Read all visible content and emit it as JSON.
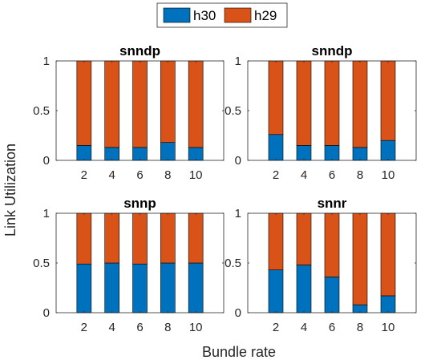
{
  "figure": {
    "xlabel": "Bundle rate",
    "ylabel": "Link Utilization"
  },
  "legend": {
    "placement": "top-center",
    "entries": [
      {
        "label": "h30",
        "color": "#0072BD"
      },
      {
        "label": "h29",
        "color": "#D95319"
      }
    ]
  },
  "chart_data": [
    {
      "type": "bar",
      "stacked": true,
      "title": "snndp",
      "categories": [
        "2",
        "4",
        "6",
        "8",
        "10"
      ],
      "ylim": [
        0,
        1
      ],
      "yticks": [
        "0",
        "0.5",
        "1"
      ],
      "series": [
        {
          "name": "h30",
          "values": [
            0.15,
            0.13,
            0.13,
            0.18,
            0.13
          ]
        },
        {
          "name": "h29",
          "values": [
            0.85,
            0.87,
            0.87,
            0.82,
            0.87
          ]
        }
      ]
    },
    {
      "type": "bar",
      "stacked": true,
      "title": "snndp",
      "categories": [
        "2",
        "4",
        "6",
        "8",
        "10"
      ],
      "ylim": [
        0,
        1
      ],
      "yticks": [
        "0",
        "0.5",
        "1"
      ],
      "series": [
        {
          "name": "h30",
          "values": [
            0.26,
            0.15,
            0.15,
            0.13,
            0.2
          ]
        },
        {
          "name": "h29",
          "values": [
            0.74,
            0.85,
            0.85,
            0.87,
            0.8
          ]
        }
      ]
    },
    {
      "type": "bar",
      "stacked": true,
      "title": "snnp",
      "categories": [
        "2",
        "4",
        "6",
        "8",
        "10"
      ],
      "ylim": [
        0,
        1
      ],
      "yticks": [
        "0",
        "0.5",
        "1"
      ],
      "series": [
        {
          "name": "h30",
          "values": [
            0.49,
            0.5,
            0.49,
            0.5,
            0.5
          ]
        },
        {
          "name": "h29",
          "values": [
            0.51,
            0.5,
            0.51,
            0.5,
            0.5
          ]
        }
      ]
    },
    {
      "type": "bar",
      "stacked": true,
      "title": "snnr",
      "categories": [
        "2",
        "4",
        "6",
        "8",
        "10"
      ],
      "ylim": [
        0,
        1
      ],
      "yticks": [
        "0",
        "0.5",
        "1"
      ],
      "series": [
        {
          "name": "h30",
          "values": [
            0.43,
            0.48,
            0.36,
            0.08,
            0.17
          ]
        },
        {
          "name": "h29",
          "values": [
            0.57,
            0.52,
            0.64,
            0.92,
            0.83
          ]
        }
      ]
    }
  ]
}
